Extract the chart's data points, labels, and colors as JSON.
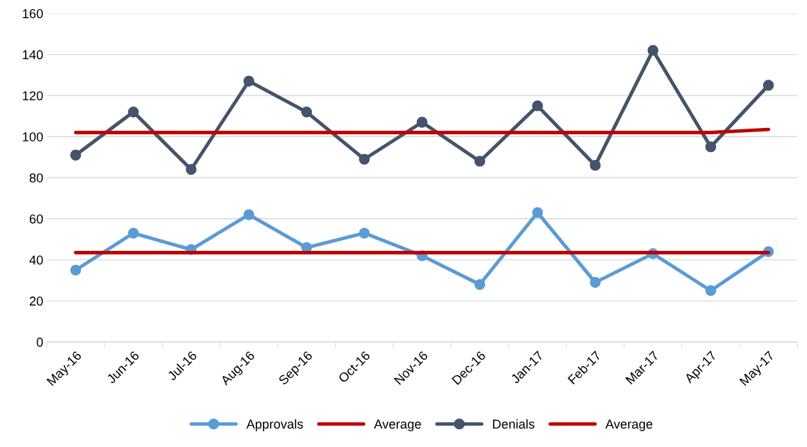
{
  "chart_data": {
    "type": "line",
    "categories": [
      "May-16",
      "Jun-16",
      "Jul-16",
      "Aug-16",
      "Sep-16",
      "Oct-16",
      "Nov-16",
      "Dec-16",
      "Jan-17",
      "Feb-17",
      "Mar-17",
      "Apr-17",
      "May-17"
    ],
    "series": [
      {
        "name": "Approvals",
        "color": "#5b9bd5",
        "marker": "circle",
        "values": [
          35,
          53,
          45,
          62,
          46,
          53,
          42,
          28,
          63,
          29,
          43,
          25,
          44
        ]
      },
      {
        "name": "Average",
        "color": "#c00000",
        "marker": "none",
        "values": [
          43.5,
          43.5,
          43.5,
          43.5,
          43.5,
          43.5,
          43.5,
          43.5,
          43.5,
          43.5,
          43.5,
          43.5,
          43.5
        ]
      },
      {
        "name": "Denials",
        "color": "#44546a",
        "marker": "circle",
        "values": [
          91,
          112,
          84,
          127,
          112,
          89,
          107,
          88,
          115,
          86,
          142,
          95,
          125
        ]
      },
      {
        "name": "Average",
        "color": "#c00000",
        "marker": "none",
        "values": [
          102,
          102,
          102,
          102,
          102,
          102,
          102,
          102,
          102,
          102,
          102,
          102,
          103.5
        ]
      }
    ],
    "ylim": [
      0,
      160
    ],
    "yticks": [
      0,
      20,
      40,
      60,
      80,
      100,
      120,
      140,
      160
    ],
    "grid": "y",
    "legend": "bottom",
    "line_style": "solid"
  }
}
